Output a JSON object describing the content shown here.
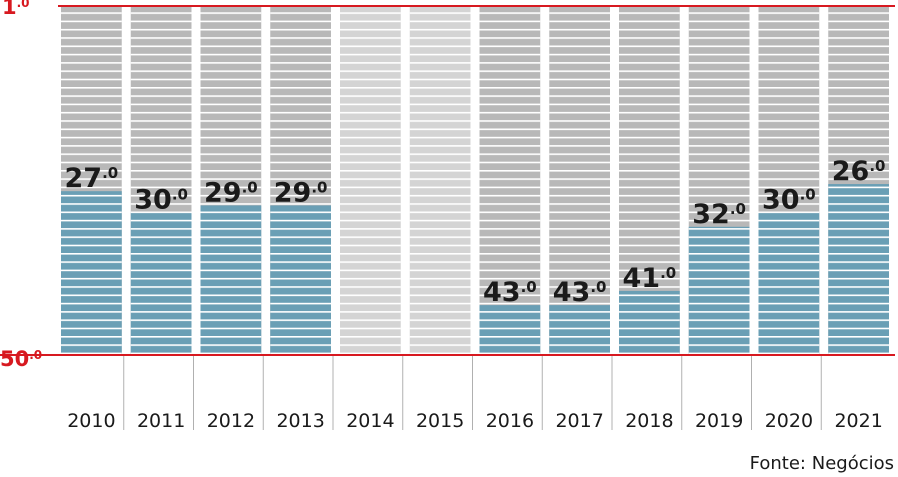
{
  "chart_data": {
    "type": "bar",
    "orientation": "inverted-ranking",
    "y_axis": {
      "top_label": "1",
      "top_label_decimal": ".0",
      "bottom_label": "50",
      "bottom_label_decimal": ".0",
      "range": [
        1,
        50
      ]
    },
    "categories": [
      "2010",
      "2011",
      "2012",
      "2013",
      "2014",
      "2015",
      "2016",
      "2017",
      "2018",
      "2019",
      "2020",
      "2021"
    ],
    "values": [
      27,
      30,
      29,
      29,
      null,
      null,
      43,
      43,
      41,
      32,
      30,
      26
    ],
    "value_labels": [
      "27",
      "30",
      "29",
      "29",
      "",
      "",
      "43",
      "43",
      "41",
      "32",
      "30",
      "26"
    ],
    "value_label_decimal": ".0",
    "grid": true
  },
  "source": "Fonte: Negócios",
  "colors": {
    "bar": "#6a9fb5",
    "background_column": "#b8b8b8",
    "missing_column": "#d4d4d4",
    "stripe": "#ffffff",
    "axis_red": "#d71920",
    "text": "#1a1a1a",
    "divider": "#b0b0b0"
  }
}
